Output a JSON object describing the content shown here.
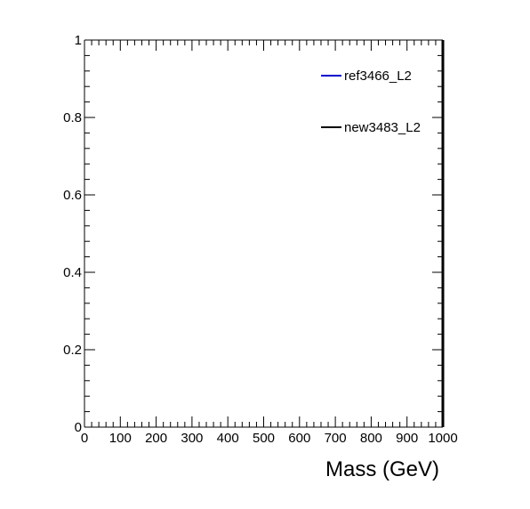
{
  "chart_data": {
    "type": "line",
    "title": "",
    "xlabel": "Mass (GeV)",
    "ylabel": "",
    "xlim": [
      0,
      1000
    ],
    "ylim": [
      0,
      1
    ],
    "x_major_ticks": [
      0,
      100,
      200,
      300,
      400,
      500,
      600,
      700,
      800,
      900,
      1000
    ],
    "x_tick_labels": [
      "0",
      "100",
      "200",
      "300",
      "400",
      "500",
      "600",
      "700",
      "800",
      "900",
      "1000"
    ],
    "y_major_ticks": [
      0,
      0.2,
      0.4,
      0.6,
      0.8,
      1
    ],
    "y_tick_labels": [
      "0",
      "0.2",
      "0.4",
      "0.6",
      "0.8",
      "1"
    ],
    "grid": false,
    "legend_position": "top-right",
    "series": [
      {
        "name": "ref3466_L2",
        "color": "#0000cc",
        "x": [],
        "y": []
      },
      {
        "name": "new3483_L2",
        "color": "#000000",
        "x": [],
        "y": []
      }
    ]
  }
}
